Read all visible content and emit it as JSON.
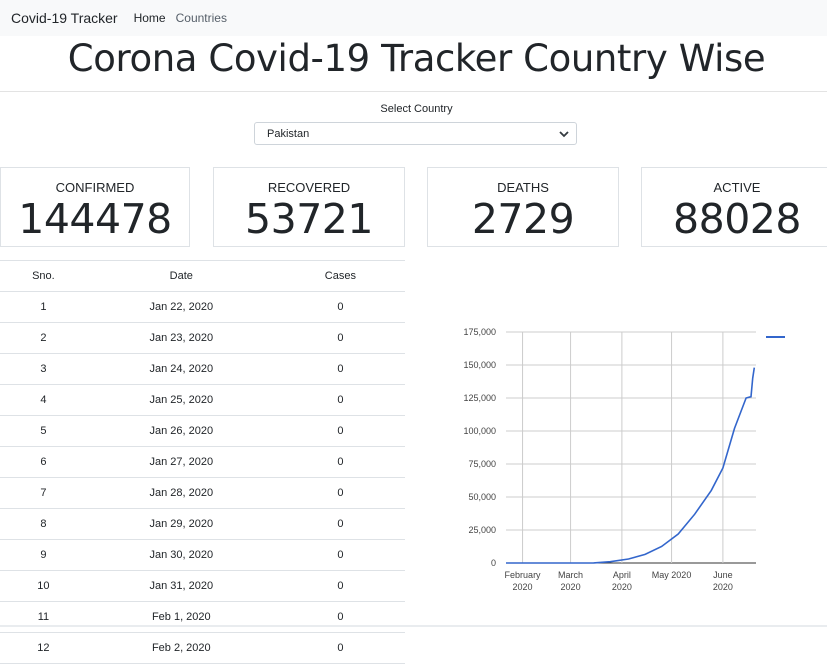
{
  "navbar": {
    "brand": "Covid-19 Tracker",
    "links": [
      {
        "label": "Home"
      },
      {
        "label": "Countries"
      }
    ]
  },
  "page_title": "Corona Covid-19 Tracker Country Wise",
  "country_select": {
    "label": "Select Country",
    "value": "Pakistan"
  },
  "stats": [
    {
      "label": "CONFIRMED",
      "value": "144478"
    },
    {
      "label": "RECOVERED",
      "value": "53721"
    },
    {
      "label": "DEATHS",
      "value": "2729"
    },
    {
      "label": "ACTIVE",
      "value": "88028"
    }
  ],
  "table": {
    "headers": [
      "Sno.",
      "Date",
      "Cases"
    ],
    "rows": [
      [
        "1",
        "Jan 22, 2020",
        "0"
      ],
      [
        "2",
        "Jan 23, 2020",
        "0"
      ],
      [
        "3",
        "Jan 24, 2020",
        "0"
      ],
      [
        "4",
        "Jan 25, 2020",
        "0"
      ],
      [
        "5",
        "Jan 26, 2020",
        "0"
      ],
      [
        "6",
        "Jan 27, 2020",
        "0"
      ],
      [
        "7",
        "Jan 28, 2020",
        "0"
      ],
      [
        "8",
        "Jan 29, 2020",
        "0"
      ],
      [
        "9",
        "Jan 30, 2020",
        "0"
      ],
      [
        "10",
        "Jan 31, 2020",
        "0"
      ],
      [
        "11",
        "Feb 1, 2020",
        "0"
      ],
      [
        "12",
        "Feb 2, 2020",
        "0"
      ]
    ]
  },
  "colors": {
    "line": "#3366cc",
    "grid": "#cccccc",
    "navbar_bg": "#f8f9fa"
  },
  "chart_data": {
    "type": "line",
    "x": [
      "2020-01-22",
      "2020-02-15",
      "2020-03-15",
      "2020-03-25",
      "2020-04-05",
      "2020-04-15",
      "2020-04-25",
      "2020-05-05",
      "2020-05-15",
      "2020-05-25",
      "2020-06-01",
      "2020-06-08",
      "2020-06-15",
      "2020-06-18",
      "2020-06-19",
      "2020-06-20"
    ],
    "y": [
      0,
      0,
      50,
      1000,
      3000,
      6500,
      12500,
      22000,
      37000,
      55000,
      72000,
      102000,
      125000,
      126000,
      140000,
      148000
    ],
    "series": [
      {
        "values": [
          0,
          0,
          50,
          1000,
          3000,
          6500,
          12500,
          22000,
          37000,
          55000,
          72000,
          102000,
          125000,
          126000,
          140000,
          148000
        ]
      }
    ],
    "xlabel": "",
    "ylabel": "",
    "ylim": [
      0,
      175000
    ],
    "yticks": [
      "0",
      "25,000",
      "50,000",
      "75,000",
      "100,000",
      "125,000",
      "150,000",
      "175,000"
    ],
    "xticks": [
      {
        "month": "February",
        "year": "2020",
        "date": "2020-02-01"
      },
      {
        "month": "March",
        "year": "2020",
        "date": "2020-03-01"
      },
      {
        "month": "April",
        "year": "2020",
        "date": "2020-04-01"
      },
      {
        "month": "May 2020",
        "year": "",
        "date": "2020-05-01"
      },
      {
        "month": "June",
        "year": "2020",
        "date": "2020-06-01"
      }
    ],
    "grid": true,
    "legend": "top-right"
  }
}
